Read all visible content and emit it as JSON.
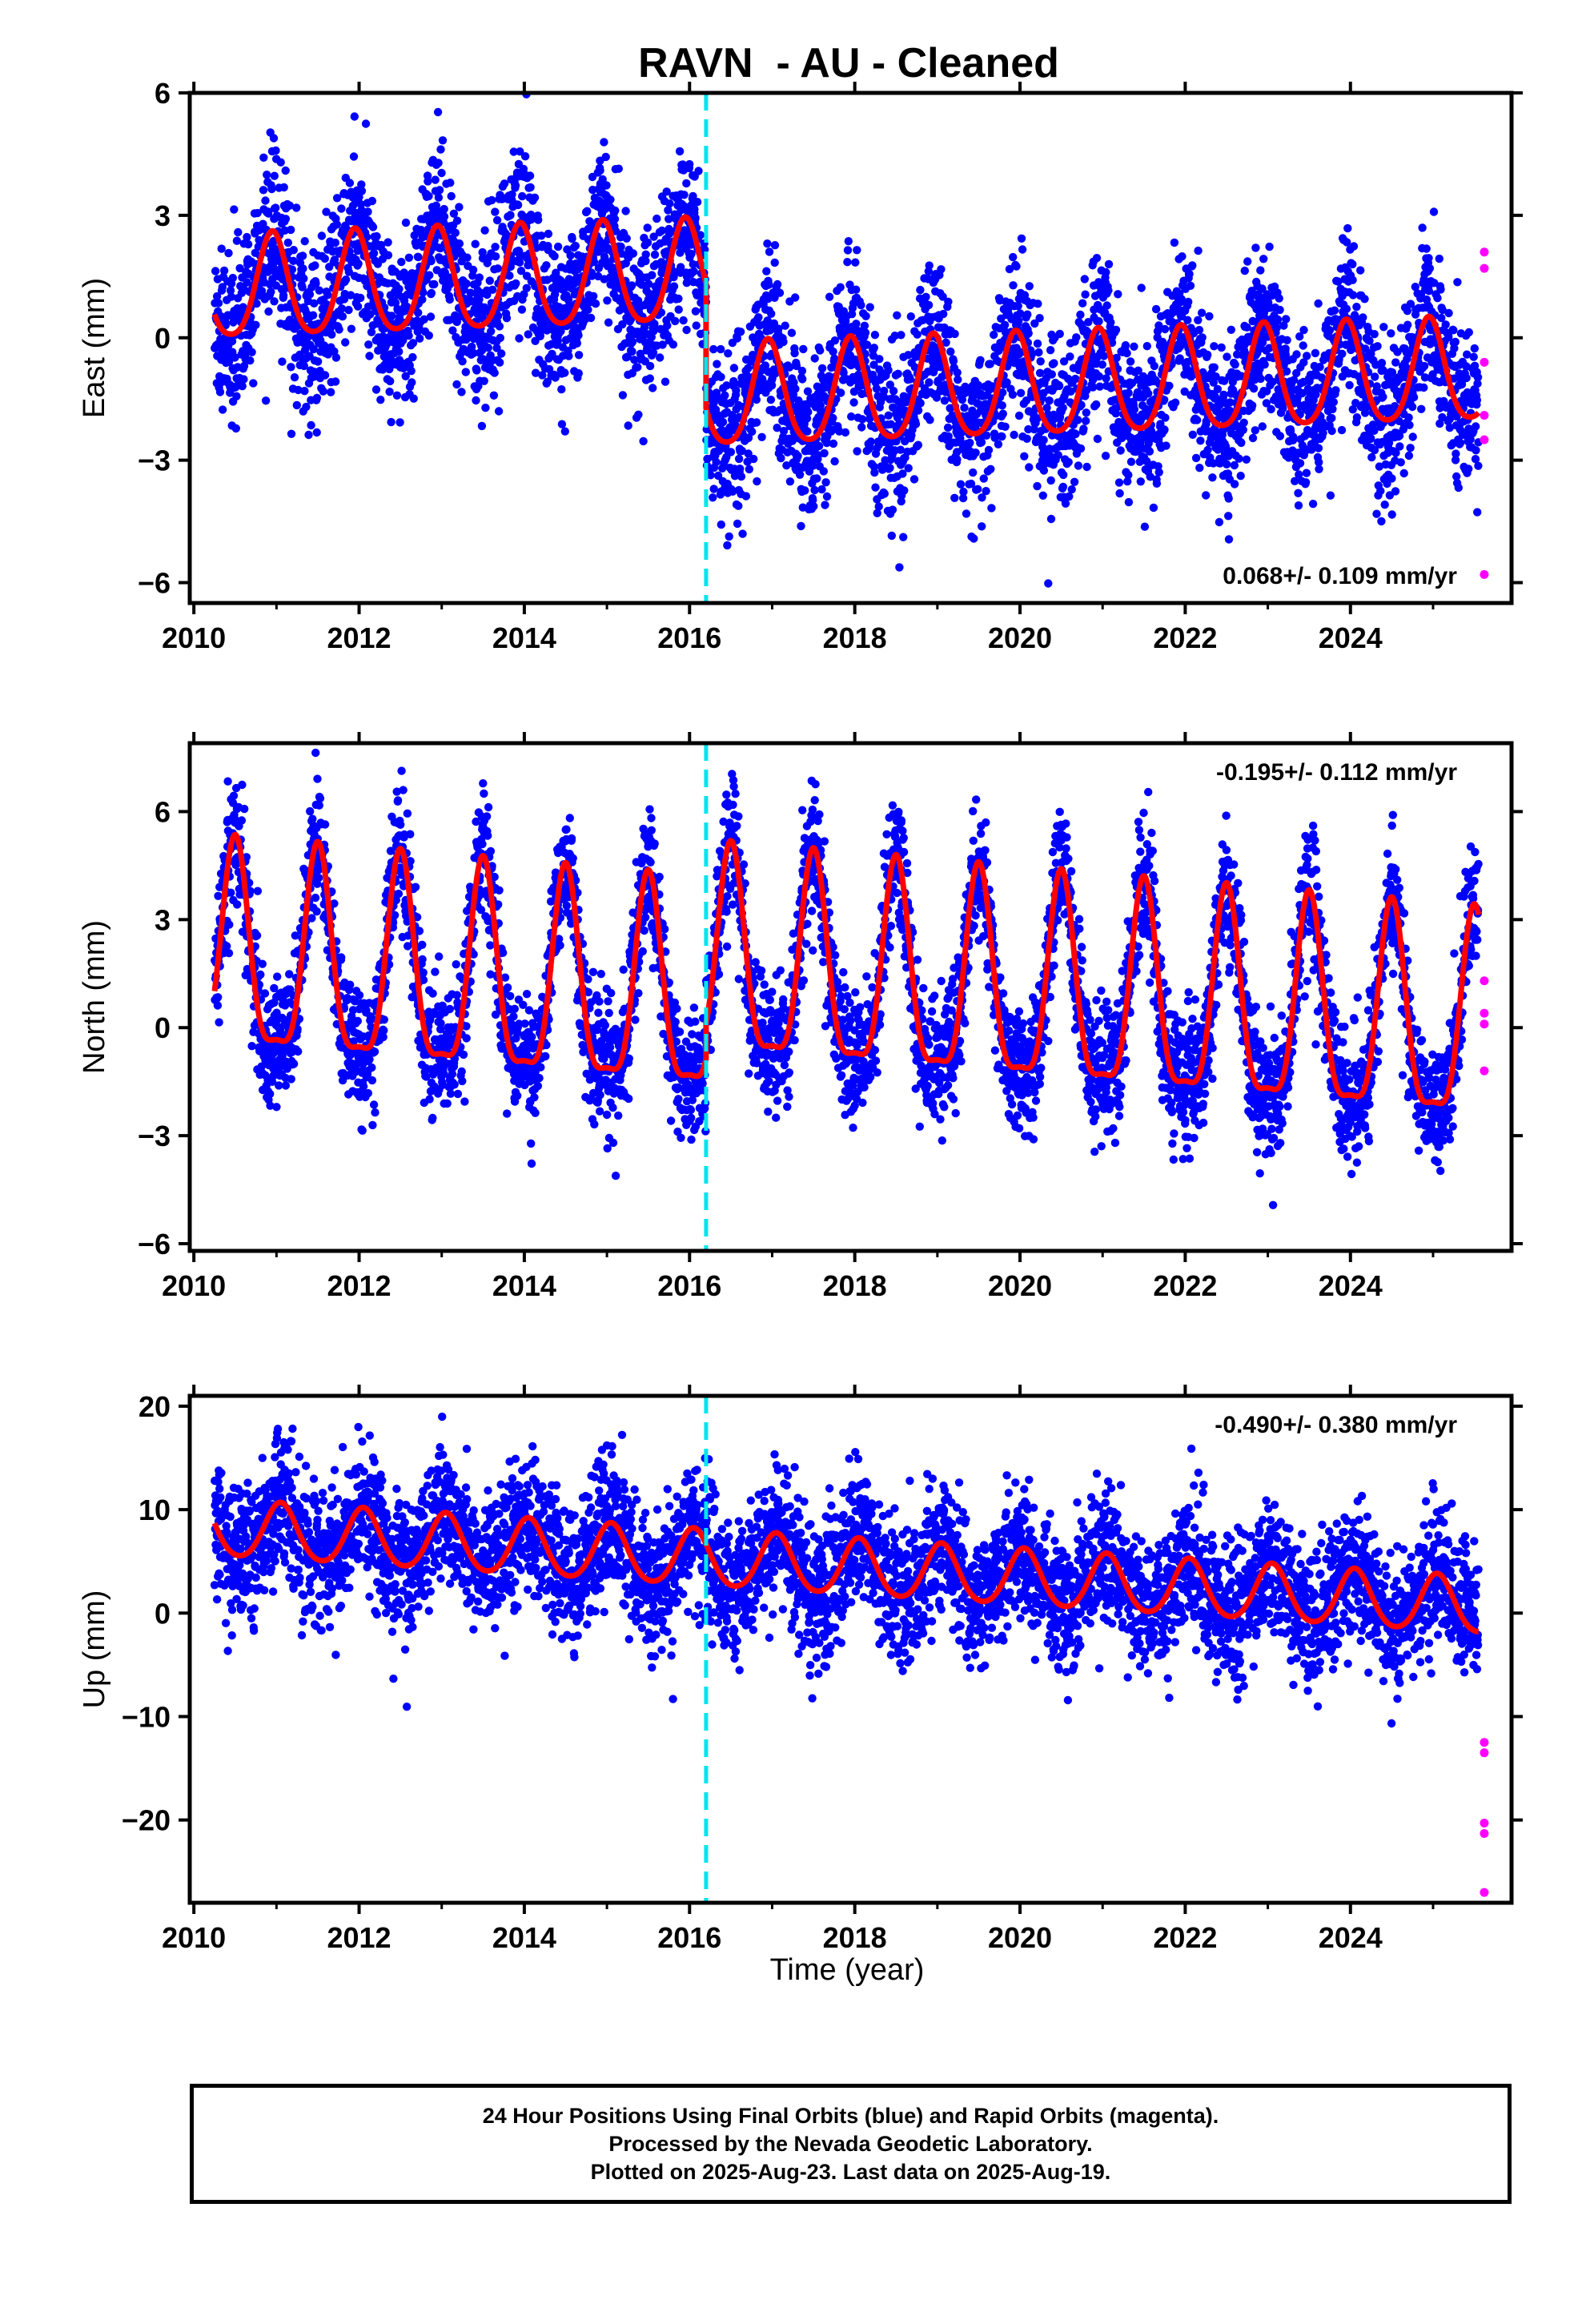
{
  "title": "RAVN  - AU - Cleaned",
  "xlabel": "Time (year)",
  "colors": {
    "final": "#0000ff",
    "rapid": "#ff00ff",
    "model": "#ff0000",
    "event": "#00e5ee"
  },
  "footer": {
    "line1": "24 Hour Positions Using Final Orbits (blue) and Rapid Orbits (magenta).",
    "line2": "Processed by the Nevada Geodetic Laboratory.",
    "line3": "Plotted on 2025-Aug-23. Last data on 2025-Aug-19."
  },
  "chart_data": [
    {
      "type": "scatter",
      "ylabel": "East (mm)",
      "xlim": [
        2009.95,
        2025.95
      ],
      "ylim": [
        -6.5,
        6
      ],
      "xticks": [
        2010,
        2012,
        2014,
        2016,
        2018,
        2020,
        2022,
        2024
      ],
      "yticks": [
        -6,
        -3,
        0,
        3,
        6
      ],
      "ytick_labels": [
        "−6",
        "−3",
        "0",
        "3",
        "6"
      ],
      "rate_text": "0.068+/- 0.109 mm/yr",
      "rate_position": "bottom-right",
      "event_line_x": 2016.2,
      "data_span": [
        2010.25,
        2025.55
      ],
      "model": {
        "offset_before": 1.65,
        "offset_after": -1.4,
        "step_at": 2016.2,
        "trend": 0.068,
        "annual_amplitude": 1.25,
        "peak_phase": 0.95,
        "semiannual_amplitude": 0.2
      },
      "scatter_sigma": 1.0,
      "rapid_points": [
        {
          "x": 2025.62,
          "y": 2.1
        },
        {
          "x": 2025.62,
          "y": 1.7
        },
        {
          "x": 2025.62,
          "y": -0.6
        },
        {
          "x": 2025.62,
          "y": -1.9
        },
        {
          "x": 2025.62,
          "y": -2.5
        },
        {
          "x": 2025.62,
          "y": -5.8
        }
      ]
    },
    {
      "type": "scatter",
      "ylabel": "North (mm)",
      "xlim": [
        2009.95,
        2025.95
      ],
      "ylim": [
        -6.2,
        7.9
      ],
      "xticks": [
        2010,
        2012,
        2014,
        2016,
        2018,
        2020,
        2022,
        2024
      ],
      "yticks": [
        -6,
        -3,
        0,
        3,
        6
      ],
      "ytick_labels": [
        "−6",
        "−3",
        "0",
        "3",
        "6"
      ],
      "rate_text": "-0.195+/- 0.112 mm/yr",
      "rate_position": "top-right",
      "event_line_x": 2016.2,
      "data_span": [
        2010.25,
        2025.55
      ],
      "model": {
        "offset_before": 0.3,
        "offset_after": 1.3,
        "step_at": 2016.2,
        "trend": -0.195,
        "annual_amplitude": 2.8,
        "peak_phase": 0.5,
        "semiannual_amplitude": 0.8
      },
      "scatter_sigma": 0.9,
      "rapid_points": [
        {
          "x": 2025.62,
          "y": 1.3
        },
        {
          "x": 2025.62,
          "y": 0.4
        },
        {
          "x": 2025.62,
          "y": 0.1
        },
        {
          "x": 2025.62,
          "y": -1.2
        }
      ]
    },
    {
      "type": "scatter",
      "ylabel": "Up (mm)",
      "xlim": [
        2009.95,
        2025.95
      ],
      "ylim": [
        -28,
        21
      ],
      "xticks": [
        2010,
        2012,
        2014,
        2016,
        2018,
        2020,
        2022,
        2024
      ],
      "yticks": [
        -20,
        -10,
        0,
        10,
        20
      ],
      "ytick_labels": [
        "−20",
        "−10",
        "0",
        "10",
        "20"
      ],
      "rate_text": "-0.490+/- 0.380 mm/yr",
      "rate_position": "top-right",
      "event_line_x": 2016.2,
      "data_span": [
        2010.25,
        2025.55
      ],
      "model": {
        "offset_before": 4.3,
        "offset_after": 4.3,
        "step_at": 2016.2,
        "trend": -0.49,
        "annual_amplitude": 2.7,
        "peak_phase": 0.05,
        "semiannual_amplitude": 0.3
      },
      "scatter_sigma": 3.3,
      "rapid_points": [
        {
          "x": 2025.62,
          "y": -12.5
        },
        {
          "x": 2025.62,
          "y": -13.5
        },
        {
          "x": 2025.62,
          "y": -20.3
        },
        {
          "x": 2025.62,
          "y": -21.3
        },
        {
          "x": 2025.62,
          "y": -27.0
        }
      ]
    }
  ]
}
